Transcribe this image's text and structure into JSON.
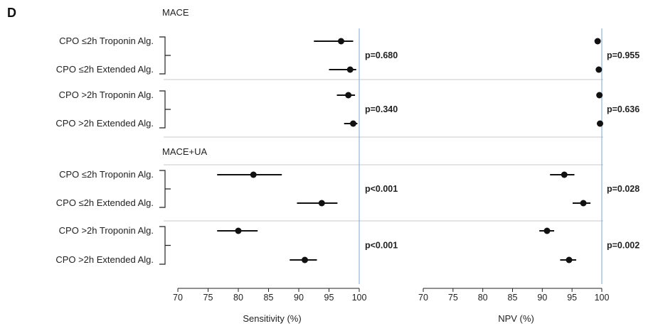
{
  "chart_data": {
    "type": "forest",
    "panel_label": "D",
    "sections": [
      {
        "title": "MACE",
        "groups": [
          {
            "rows": [
              {
                "label": "CPO ≤2h Troponin Alg.",
                "sensitivity": {
                  "est": 97.0,
                  "lo": 92.5,
                  "hi": 99.0
                },
                "npv": {
                  "est": 99.3,
                  "lo": 98.8,
                  "hi": 99.7
                }
              },
              {
                "label": "CPO ≤2h Extended Alg.",
                "sensitivity": {
                  "est": 98.5,
                  "lo": 95.0,
                  "hi": 99.5
                },
                "npv": {
                  "est": 99.5,
                  "lo": 99.1,
                  "hi": 99.8
                }
              }
            ],
            "p_sensitivity": "p=0.680",
            "p_npv": "p=0.955"
          },
          {
            "rows": [
              {
                "label": "CPO >2h Troponin Alg.",
                "sensitivity": {
                  "est": 98.2,
                  "lo": 96.3,
                  "hi": 99.3
                },
                "npv": {
                  "est": 99.6,
                  "lo": 99.2,
                  "hi": 99.9
                }
              },
              {
                "label": "CPO >2h Extended Alg.",
                "sensitivity": {
                  "est": 99.0,
                  "lo": 97.5,
                  "hi": 99.7
                },
                "npv": {
                  "est": 99.7,
                  "lo": 99.4,
                  "hi": 99.9
                }
              }
            ],
            "p_sensitivity": "p=0.340",
            "p_npv": "p=0.636"
          }
        ]
      },
      {
        "title": "MACE+UA",
        "groups": [
          {
            "rows": [
              {
                "label": "CPO ≤2h Troponin Alg.",
                "sensitivity": {
                  "est": 82.5,
                  "lo": 76.5,
                  "hi": 87.2
                },
                "npv": {
                  "est": 93.7,
                  "lo": 91.3,
                  "hi": 95.4
                }
              },
              {
                "label": "CPO ≤2h Extended Alg.",
                "sensitivity": {
                  "est": 93.8,
                  "lo": 89.7,
                  "hi": 96.4
                },
                "npv": {
                  "est": 96.9,
                  "lo": 95.1,
                  "hi": 98.1
                }
              }
            ],
            "p_sensitivity": "p<0.001",
            "p_npv": "p=0.028"
          },
          {
            "rows": [
              {
                "label": "CPO >2h Troponin Alg.",
                "sensitivity": {
                  "est": 80.0,
                  "lo": 76.5,
                  "hi": 83.2
                },
                "npv": {
                  "est": 90.8,
                  "lo": 89.5,
                  "hi": 92.0
                }
              },
              {
                "label": "CPO >2h Extended Alg.",
                "sensitivity": {
                  "est": 91.0,
                  "lo": 88.5,
                  "hi": 93.0
                },
                "npv": {
                  "est": 94.5,
                  "lo": 93.0,
                  "hi": 95.7
                }
              }
            ],
            "p_sensitivity": "p<0.001",
            "p_npv": "p=0.002"
          }
        ]
      }
    ],
    "axes": [
      {
        "key": "sensitivity",
        "label": "Sensitivity (%)",
        "xlim": [
          70,
          100
        ],
        "ticks": [
          70,
          75,
          80,
          85,
          90,
          95,
          100
        ],
        "reference_line": 100
      },
      {
        "key": "npv",
        "label": "NPV (%)",
        "xlim": [
          70,
          100
        ],
        "ticks": [
          70,
          75,
          80,
          85,
          90,
          95,
          100
        ],
        "reference_line": 100
      }
    ],
    "grid": false,
    "colors": {
      "marker": "#111111",
      "reference_line": "#8fb3d9",
      "separator": "#c8c8c8"
    }
  }
}
